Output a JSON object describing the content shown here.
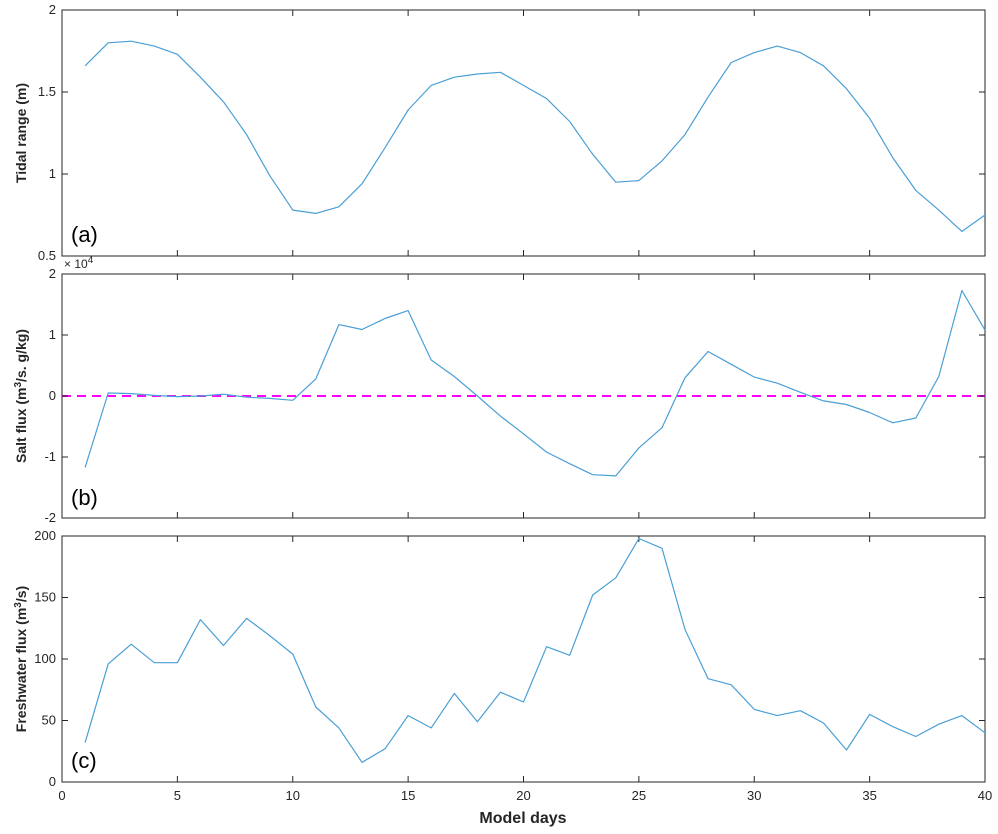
{
  "colors": {
    "series": "#4a9fd6",
    "zero_line": "#ff00ff",
    "axes": "#262626",
    "background": "#ffffff"
  },
  "chart_data": [
    {
      "type": "line",
      "panel_label": "(a)",
      "ylabel": "Tidal range (m)",
      "xlim": [
        0,
        40
      ],
      "ylim": [
        0.5,
        2
      ],
      "yticks": [
        0.5,
        1,
        1.5,
        2
      ],
      "ytick_labels": [
        "0.5",
        "1",
        "1.5",
        "2"
      ],
      "xticks": [
        0,
        5,
        10,
        15,
        20,
        25,
        30,
        35,
        40
      ],
      "show_xtick_labels": false,
      "grid": false,
      "series": [
        {
          "x": [
            1,
            2,
            3,
            4,
            5,
            6,
            7,
            8,
            9,
            10,
            11,
            12,
            13,
            14,
            15,
            16,
            17,
            18,
            19,
            20,
            21,
            22,
            23,
            24,
            25,
            26,
            27,
            28,
            29,
            30,
            31,
            32,
            33,
            34,
            35,
            36,
            37,
            38,
            39,
            40
          ],
          "values": [
            1.66,
            1.8,
            1.81,
            1.78,
            1.73,
            1.59,
            1.44,
            1.24,
            0.99,
            0.78,
            0.76,
            0.8,
            0.94,
            1.16,
            1.39,
            1.54,
            1.59,
            1.61,
            1.62,
            1.54,
            1.46,
            1.32,
            1.12,
            0.95,
            0.96,
            1.08,
            1.24,
            1.47,
            1.68,
            1.74,
            1.78,
            1.74,
            1.66,
            1.52,
            1.34,
            1.1,
            0.9,
            0.78,
            0.65,
            0.75
          ]
        }
      ]
    },
    {
      "type": "line",
      "panel_label": "(b)",
      "ylabel_main": "Salt flux (m",
      "ylabel_sup": "3",
      "ylabel_rest": "/s. g/kg)",
      "exponent_base": "× 10",
      "exponent_power": "4",
      "xlim": [
        0,
        40
      ],
      "ylim": [
        -2,
        2
      ],
      "yticks": [
        -2,
        -1,
        0,
        1,
        2
      ],
      "ytick_labels": [
        "-2",
        "-1",
        "0",
        "1",
        "2"
      ],
      "xticks": [
        0,
        5,
        10,
        15,
        20,
        25,
        30,
        35,
        40
      ],
      "show_xtick_labels": false,
      "grid": false,
      "reference_line": {
        "y": 0,
        "style": "dashed"
      },
      "series": [
        {
          "x": [
            1,
            2,
            3,
            4,
            5,
            6,
            7,
            8,
            9,
            10,
            11,
            12,
            13,
            14,
            15,
            16,
            17,
            18,
            19,
            20,
            21,
            22,
            23,
            24,
            25,
            26,
            27,
            28,
            29,
            30,
            31,
            32,
            33,
            34,
            35,
            36,
            37,
            38,
            39,
            40
          ],
          "values": [
            -1.17,
            0.05,
            0.04,
            0.01,
            -0.01,
            0.0,
            0.03,
            -0.02,
            -0.04,
            -0.07,
            0.28,
            1.17,
            1.09,
            1.27,
            1.4,
            0.59,
            0.32,
            0.0,
            -0.33,
            -0.62,
            -0.92,
            -1.11,
            -1.29,
            -1.31,
            -0.85,
            -0.52,
            0.3,
            0.73,
            0.52,
            0.31,
            0.21,
            0.06,
            -0.08,
            -0.14,
            -0.27,
            -0.44,
            -0.36,
            0.32,
            1.73,
            1.08
          ]
        }
      ]
    },
    {
      "type": "line",
      "panel_label": "(c)",
      "ylabel_main": "Freshwater flux (m",
      "ylabel_sup": "3",
      "ylabel_rest": "/s)",
      "xlabel": "Model days",
      "xlim": [
        0,
        40
      ],
      "ylim": [
        0,
        200
      ],
      "yticks": [
        0,
        50,
        100,
        150,
        200
      ],
      "ytick_labels": [
        "0",
        "50",
        "100",
        "150",
        "200"
      ],
      "xticks": [
        0,
        5,
        10,
        15,
        20,
        25,
        30,
        35,
        40
      ],
      "xtick_labels": [
        "0",
        "5",
        "10",
        "15",
        "20",
        "25",
        "30",
        "35",
        "40"
      ],
      "show_xtick_labels": true,
      "grid": false,
      "series": [
        {
          "x": [
            1,
            2,
            3,
            4,
            5,
            6,
            7,
            8,
            9,
            10,
            11,
            12,
            13,
            14,
            15,
            16,
            17,
            18,
            19,
            20,
            21,
            22,
            23,
            24,
            25,
            26,
            27,
            28,
            29,
            30,
            31,
            32,
            33,
            34,
            35,
            36,
            37,
            38,
            39,
            40
          ],
          "values": [
            32,
            96,
            112,
            97,
            97,
            132,
            111,
            133,
            119,
            104,
            61,
            44,
            16,
            27,
            54,
            44,
            72,
            49,
            73,
            65,
            110,
            103,
            152,
            166,
            198,
            190,
            124,
            84,
            79,
            59,
            54,
            58,
            48,
            26,
            55,
            45,
            37,
            47,
            54,
            40
          ]
        }
      ]
    }
  ]
}
